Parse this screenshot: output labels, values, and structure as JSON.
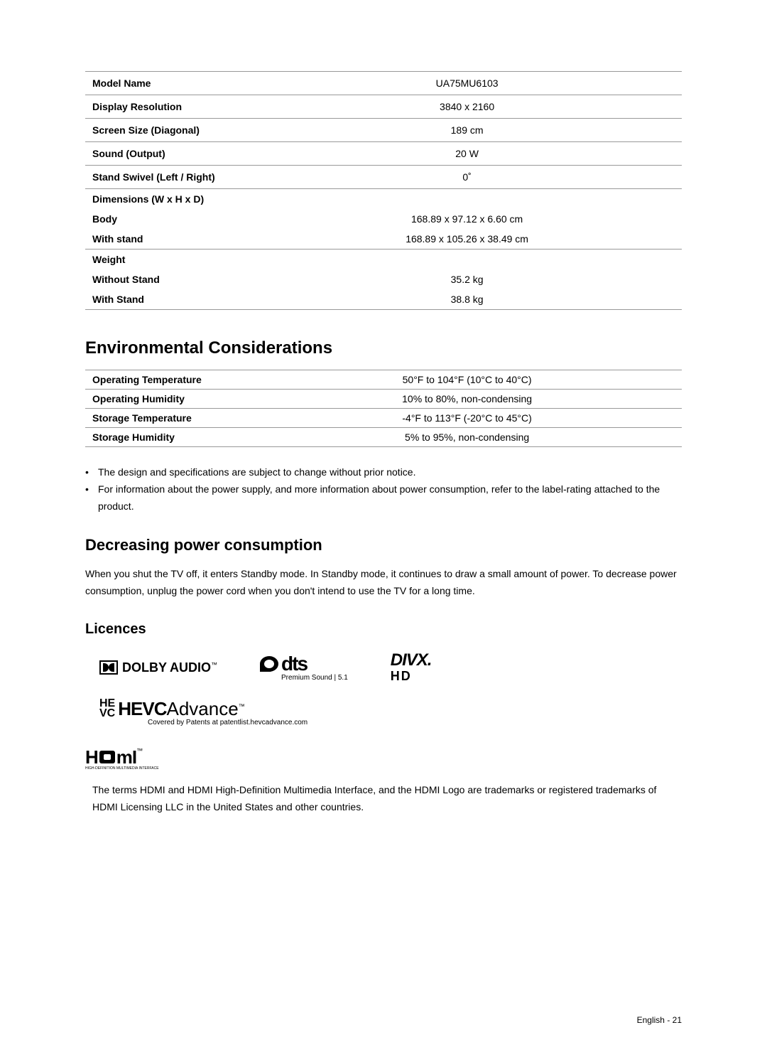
{
  "specs": {
    "rows": [
      {
        "label": "Model Name",
        "value": "UA75MU6103"
      },
      {
        "label": "Display Resolution",
        "value": "3840 x 2160"
      },
      {
        "label": "Screen Size (Diagonal)",
        "value": "189 cm"
      },
      {
        "label": "Sound (Output)",
        "value": "20 W"
      },
      {
        "label": "Stand Swivel (Left / Right)",
        "value": "0˚"
      }
    ],
    "dimensions": {
      "title": "Dimensions (W x H x D)",
      "body_label": "Body",
      "body_value": "168.89 x 97.12 x 6.60 cm",
      "stand_label": "With stand",
      "stand_value": "168.89 x 105.26 x 38.49 cm"
    },
    "weight": {
      "title": "Weight",
      "without_label": "Without Stand",
      "without_value": "35.2 kg",
      "with_label": "With Stand",
      "with_value": "38.8 kg"
    }
  },
  "env": {
    "heading": "Environmental Considerations",
    "rows": [
      {
        "label": "Operating Temperature",
        "value": "50°F to 104°F (10°C to 40°C)"
      },
      {
        "label": "Operating Humidity",
        "value": "10% to 80%, non-condensing"
      },
      {
        "label": "Storage Temperature",
        "value": "-4°F to 113°F (-20°C to 45°C)"
      },
      {
        "label": "Storage Humidity",
        "value": "5% to 95%, non-condensing"
      }
    ]
  },
  "notes": {
    "items": [
      "The design and specifications are subject to change without prior notice.",
      "For information about the power supply, and more information about power consumption, refer to the label-rating attached to the product."
    ]
  },
  "power": {
    "heading": "Decreasing power consumption",
    "body": "When you shut the TV off, it enters Standby mode. In Standby mode, it continues to draw a small amount of power. To decrease power consumption, unplug the power cord when you don't intend to use the TV for a long time."
  },
  "licences": {
    "heading": "Licences",
    "dolby": "DOLBY AUDIO",
    "dts_main": "dts",
    "dts_sub": "Premium Sound | 5.1",
    "divx_main": "DIVX",
    "divx_sub": "HD",
    "hevc_main": "HEVC",
    "hevc_advance": "Advance",
    "hevc_sub": "Covered by Patents at patentlist.hevcadvance.com",
    "hdmi_main": "HDMI",
    "hdmi_sub": "HIGH-DEFINITION MULTIMEDIA INTERFACE",
    "hdmi_body": "The terms HDMI and HDMI High-Definition Multimedia Interface, and the HDMI Logo are trademarks or registered trademarks of HDMI Licensing LLC in the United States and other countries."
  },
  "footer": "English - 21"
}
